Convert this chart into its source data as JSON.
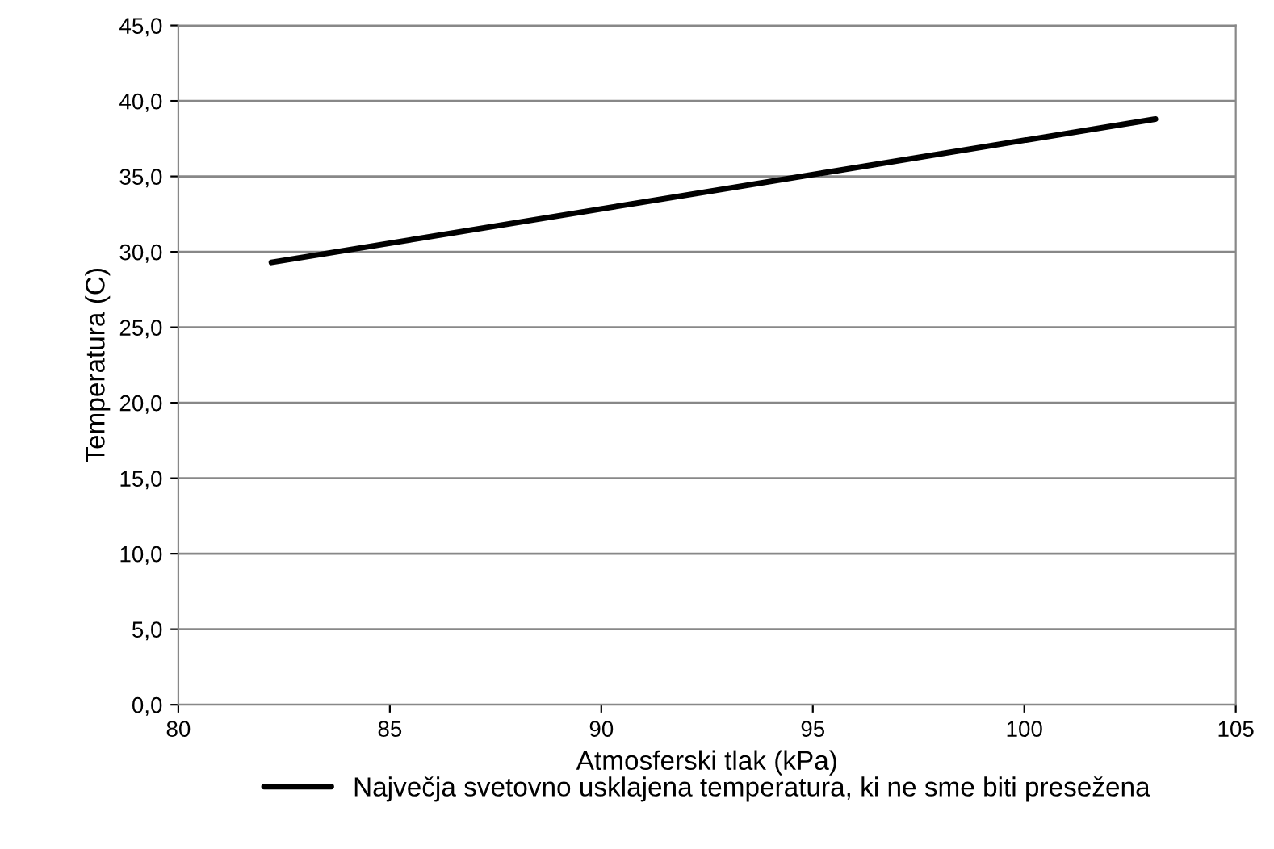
{
  "chart_data": {
    "type": "line",
    "xlabel": "Atmosferski tlak (kPa)",
    "ylabel": "Temperatura (C)",
    "series": [
      {
        "name": "Največja svetovno usklajena temperatura, ki ne sme biti presežena",
        "color": "#000000",
        "x": [
          82.2,
          103.1
        ],
        "values": [
          29.3,
          38.8
        ]
      }
    ],
    "xlim": [
      80,
      105
    ],
    "xticks": [
      80,
      85,
      90,
      95,
      100,
      105
    ],
    "ylim": [
      0,
      45
    ],
    "yticks": [
      {
        "value": 0,
        "label": "0,0"
      },
      {
        "value": 5,
        "label": "5,0"
      },
      {
        "value": 10,
        "label": "10,0"
      },
      {
        "value": 15,
        "label": "15,0"
      },
      {
        "value": 20,
        "label": "20,0"
      },
      {
        "value": 25,
        "label": "25,0"
      },
      {
        "value": 30,
        "label": "30,0"
      },
      {
        "value": 35,
        "label": "35,0"
      },
      {
        "value": 40,
        "label": "40,0"
      },
      {
        "value": 45,
        "label": "45,0"
      }
    ],
    "grid": "y",
    "legend": "bottom",
    "marker": "none",
    "line_style": "solid"
  }
}
